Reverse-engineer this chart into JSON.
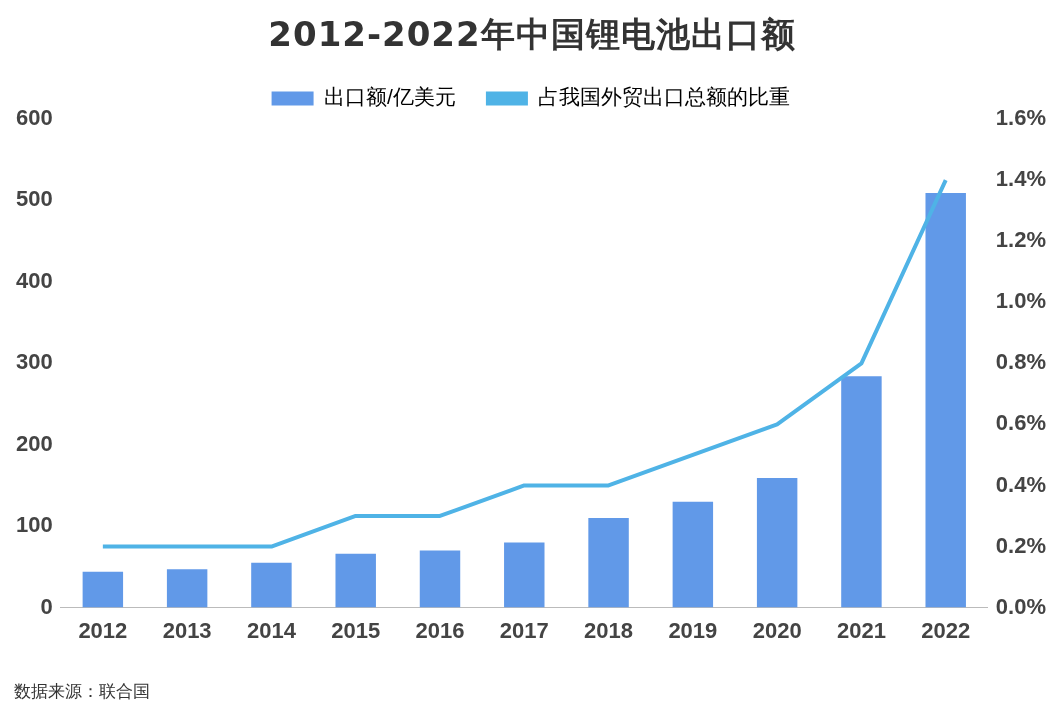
{
  "chart_data": {
    "type": "bar",
    "title": "2012-2022年中国锂电池出口额",
    "categories": [
      "2012",
      "2013",
      "2014",
      "2015",
      "2016",
      "2017",
      "2018",
      "2019",
      "2020",
      "2021",
      "2022"
    ],
    "series": [
      {
        "name": "出口额/亿美元",
        "color": "#6199e8",
        "values": [
          44,
          47,
          55,
          66,
          70,
          80,
          110,
          130,
          159,
          284,
          509
        ]
      },
      {
        "name": "占我国外贸出口总额的比重",
        "type": "line",
        "axis": "y2",
        "color": "#4fb3e6",
        "values": [
          0.2,
          0.2,
          0.2,
          0.3,
          0.3,
          0.4,
          0.4,
          0.5,
          0.6,
          0.8,
          1.4
        ]
      }
    ],
    "ylim": [
      0,
      600
    ],
    "yticks": [
      0,
      100,
      200,
      300,
      400,
      500,
      600
    ],
    "y2lim": [
      0,
      1.6
    ],
    "y2ticks": [
      {
        "value": 0,
        "label": "0.0%"
      },
      {
        "value": 0.2,
        "label": "0.2%"
      },
      {
        "value": 0.4,
        "label": "0.4%"
      },
      {
        "value": 0.6,
        "label": "0.6%"
      },
      {
        "value": 0.8,
        "label": "0.8%"
      },
      {
        "value": 1.0,
        "label": "1.0%"
      },
      {
        "value": 1.2,
        "label": "1.2%"
      },
      {
        "value": 1.4,
        "label": "1.4%"
      },
      {
        "value": 1.6,
        "label": "1.6%"
      }
    ],
    "grid": false,
    "legend": "top",
    "marker": "none",
    "line_style": "solid",
    "annotations": [
      "数据来源：联合国"
    ]
  }
}
